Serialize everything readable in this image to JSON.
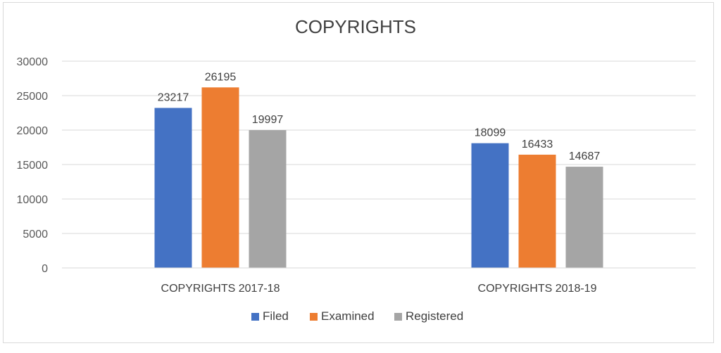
{
  "chart_data": {
    "type": "bar",
    "title": "COPYRIGHTS",
    "xlabel": "",
    "ylabel": "",
    "categories": [
      "COPYRIGHTS 2017-18",
      "COPYRIGHTS 2018-19"
    ],
    "series": [
      {
        "name": "Filed",
        "values": [
          23217,
          18099
        ],
        "color": "#4472c4"
      },
      {
        "name": "Examined",
        "values": [
          26195,
          16433
        ],
        "color": "#ed7d31"
      },
      {
        "name": "Registered",
        "values": [
          19997,
          14687
        ],
        "color": "#a5a5a5"
      }
    ],
    "ylim": [
      0,
      30000
    ],
    "yticks": [
      "0",
      "5000",
      "10000",
      "15000",
      "20000",
      "25000",
      "30000"
    ],
    "grid": true,
    "legend_position": "bottom"
  }
}
